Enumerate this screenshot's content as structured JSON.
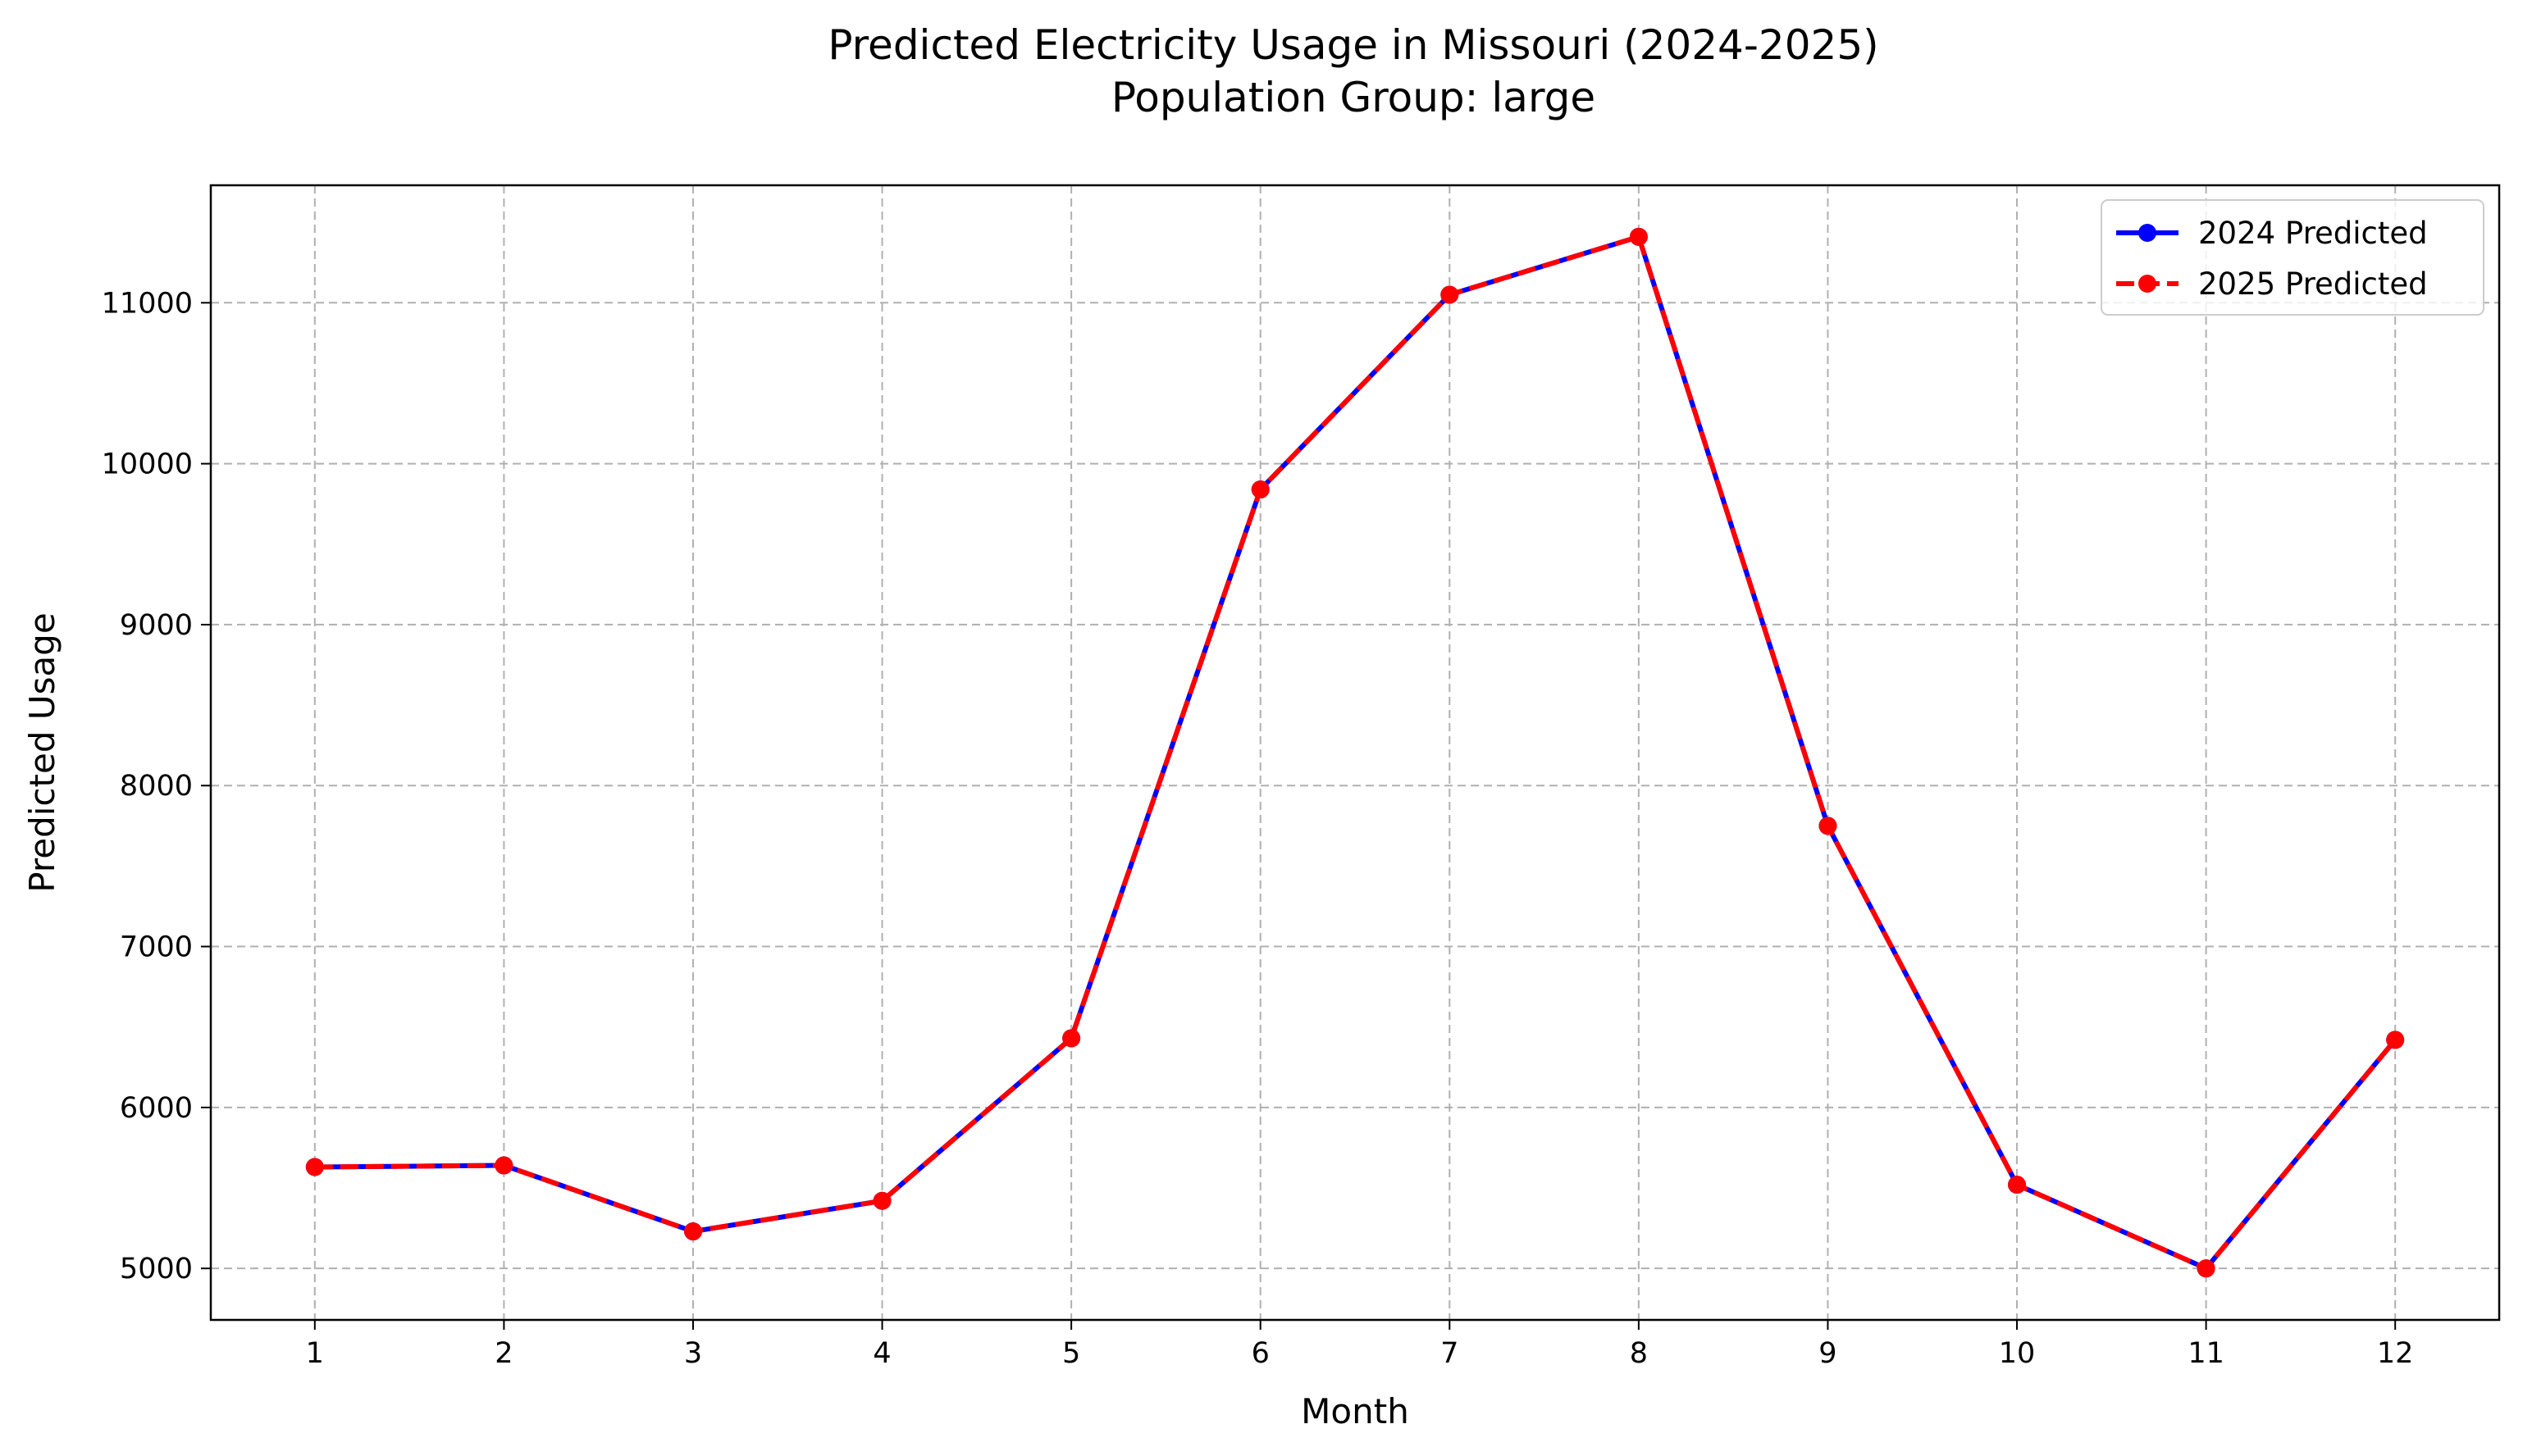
{
  "chart_data": {
    "type": "line",
    "title": "Predicted Electricity Usage in Missouri (2024-2025)",
    "subtitle": "Population Group: large",
    "xlabel": "Month",
    "ylabel": "Predicted Usage",
    "x": [
      1,
      2,
      3,
      4,
      5,
      6,
      7,
      8,
      9,
      10,
      11,
      12
    ],
    "xlim": [
      0.45,
      12.55
    ],
    "ylim": [
      4680,
      11730
    ],
    "yticks": [
      5000,
      6000,
      7000,
      8000,
      9000,
      10000,
      11000
    ],
    "grid": true,
    "legend_position": "top-right",
    "series": [
      {
        "name": "2024 Predicted",
        "color": "#0000ff",
        "values": [
          5630,
          5640,
          5230,
          5420,
          6430,
          9840,
          11050,
          11410,
          7750,
          5520,
          5000,
          6420
        ]
      },
      {
        "name": "2025 Predicted",
        "color": "#ff0000",
        "values": [
          5630,
          5640,
          5230,
          5420,
          6430,
          9840,
          11050,
          11410,
          7750,
          5520,
          5000,
          6420
        ]
      }
    ]
  }
}
